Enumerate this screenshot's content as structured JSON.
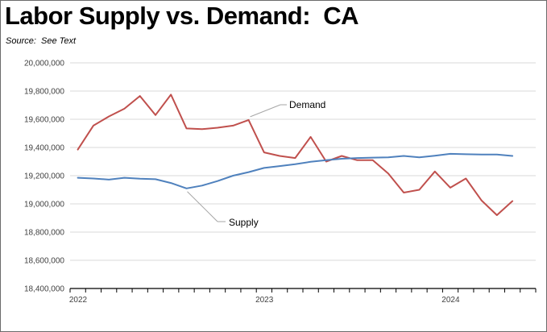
{
  "header": {
    "title": "Labor Supply vs. Demand:  CA",
    "source": "Source:  See Text"
  },
  "chart_data": {
    "type": "line",
    "title": "Labor Supply vs. Demand:  CA",
    "xlabel": "",
    "ylabel": "",
    "ylim": [
      18400000,
      20000000
    ],
    "y_ticks": [
      "18,400,000",
      "18,600,000",
      "18,800,000",
      "19,000,000",
      "19,200,000",
      "19,400,000",
      "19,600,000",
      "19,800,000",
      "20,000,000"
    ],
    "y_tick_values": [
      18400000,
      18600000,
      18800000,
      19000000,
      19200000,
      19400000,
      19600000,
      19800000,
      20000000
    ],
    "x_tick_labels": [
      {
        "label": "2022",
        "index": 0
      },
      {
        "label": "2023",
        "index": 12
      },
      {
        "label": "2024",
        "index": 24
      }
    ],
    "num_periods": 30,
    "grid": true,
    "series": [
      {
        "name": "Demand",
        "color": "#c0504d",
        "values": [
          19385000,
          19555000,
          19620000,
          19675000,
          19765000,
          19630000,
          19775000,
          19535000,
          19530000,
          19540000,
          19555000,
          19595000,
          19365000,
          19340000,
          19325000,
          19475000,
          19300000,
          19340000,
          19310000,
          19310000,
          19215000,
          19080000,
          19100000,
          19230000,
          19115000,
          19180000,
          19025000,
          18920000,
          19020000
        ]
      },
      {
        "name": "Supply",
        "color": "#4f81bd",
        "values": [
          19185000,
          19180000,
          19172000,
          19185000,
          19178000,
          19175000,
          19148000,
          19110000,
          19130000,
          19162000,
          19200000,
          19225000,
          19255000,
          19268000,
          19282000,
          19298000,
          19310000,
          19320000,
          19325000,
          19328000,
          19330000,
          19340000,
          19330000,
          19342000,
          19355000,
          19352000,
          19350000,
          19350000,
          19340000
        ]
      }
    ],
    "annotations": [
      {
        "text": "Demand",
        "series": "Demand"
      },
      {
        "text": "Supply",
        "series": "Supply"
      }
    ]
  }
}
